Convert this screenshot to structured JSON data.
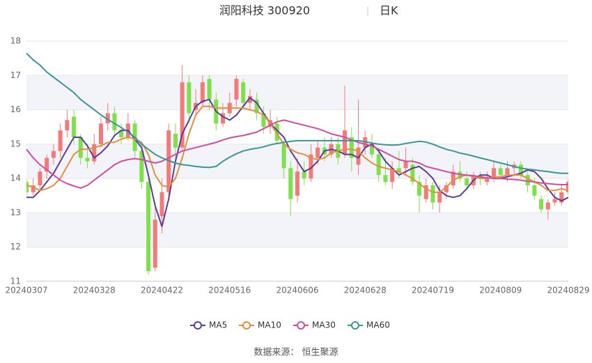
{
  "chart_data": {
    "type": "candlestick",
    "title": "润阳科技 300920",
    "subtitle": "日K",
    "source": "数据来源： 恒生聚源",
    "categories": [
      "20240307",
      null,
      null,
      null,
      null,
      null,
      null,
      null,
      null,
      null,
      "20240328",
      null,
      null,
      null,
      null,
      null,
      null,
      null,
      null,
      null,
      "20240422",
      null,
      null,
      null,
      null,
      null,
      null,
      null,
      null,
      null,
      "20240516",
      null,
      null,
      null,
      null,
      null,
      null,
      null,
      null,
      null,
      "20240606",
      null,
      null,
      null,
      null,
      null,
      null,
      null,
      null,
      null,
      "20240628",
      null,
      null,
      null,
      null,
      null,
      null,
      null,
      null,
      null,
      "20240719",
      null,
      null,
      null,
      null,
      null,
      null,
      null,
      null,
      null,
      "20240809",
      null,
      null,
      null,
      null,
      null,
      null,
      null,
      null,
      null,
      "20240829"
    ],
    "up_color": "#f27a7a",
    "down_color": "#7ee04a",
    "open": [
      13.9,
      13.6,
      13.8,
      14.2,
      14.6,
      14.8,
      15.4,
      15.8,
      15.2,
      14.6,
      14.5,
      15.0,
      15.6,
      15.9,
      15.4,
      15.2,
      15.6,
      14.8,
      13.9,
      11.4,
      12.9,
      13.6,
      15.3,
      14.9,
      16.8,
      16.0,
      16.2,
      16.9,
      16.3,
      15.6,
      15.9,
      16.3,
      16.8,
      16.2,
      16.3,
      15.9,
      15.5,
      15.6,
      15.0,
      14.3,
      13.5,
      14.2,
      14.0,
      14.6,
      14.9,
      14.7,
      15.0,
      14.7,
      15.2,
      14.4,
      14.9,
      15.0,
      14.7,
      14.1,
      13.9,
      14.3,
      14.3,
      14.4,
      13.9,
      13.4,
      13.8,
      13.3,
      13.6,
      13.8,
      14.2,
      14.0,
      13.8,
      14.1,
      13.9,
      14.0,
      14.3,
      14.1,
      14.3,
      14.4,
      14.1,
      13.8,
      13.4,
      13.1,
      13.3,
      13.3,
      13.6
    ],
    "close": [
      13.6,
      13.8,
      14.2,
      14.6,
      14.8,
      15.4,
      15.7,
      15.2,
      14.6,
      14.5,
      15.0,
      15.6,
      15.9,
      15.4,
      15.2,
      15.6,
      14.8,
      13.9,
      11.3,
      12.8,
      13.6,
      15.4,
      14.9,
      16.8,
      15.9,
      16.2,
      16.8,
      16.3,
      15.6,
      15.9,
      16.2,
      16.9,
      16.2,
      16.4,
      15.9,
      15.5,
      15.7,
      15.1,
      14.3,
      13.4,
      14.2,
      14.0,
      14.7,
      14.9,
      14.7,
      15.0,
      14.6,
      15.4,
      14.6,
      14.9,
      15.2,
      14.7,
      14.1,
      13.9,
      14.3,
      14.2,
      14.5,
      13.9,
      13.5,
      13.8,
      13.3,
      13.6,
      13.8,
      14.2,
      14.0,
      13.8,
      14.1,
      14.0,
      14.0,
      14.3,
      14.1,
      14.3,
      14.4,
      14.1,
      13.8,
      13.5,
      13.1,
      13.3,
      13.4,
      13.6,
      13.9
    ],
    "low": [
      13.5,
      13.5,
      13.7,
      14.0,
      14.4,
      14.6,
      15.2,
      15.0,
      14.4,
      14.3,
      14.4,
      14.9,
      15.4,
      15.2,
      15.0,
      15.1,
      14.6,
      13.7,
      11.2,
      11.3,
      12.4,
      13.4,
      14.5,
      14.8,
      15.6,
      15.8,
      16.1,
      16.0,
      15.4,
      15.5,
      15.8,
      16.1,
      16.0,
      16.0,
      15.7,
      15.3,
      15.3,
      15.0,
      14.0,
      12.9,
      13.3,
      13.8,
      13.9,
      14.4,
      14.5,
      14.6,
      14.4,
      14.6,
      14.2,
      14.1,
      14.7,
      14.6,
      13.9,
      13.8,
      13.7,
      14.0,
      14.1,
      13.8,
      13.0,
      13.3,
      13.1,
      13.0,
      13.4,
      13.7,
      13.9,
      13.7,
      13.7,
      13.8,
      13.8,
      13.9,
      14.0,
      13.9,
      14.1,
      14.0,
      13.6,
      13.4,
      13.0,
      12.8,
      13.2,
      13.2,
      13.5
    ],
    "high": [
      14.0,
      14.0,
      14.3,
      14.7,
      15.0,
      15.6,
      16.0,
      16.0,
      15.3,
      15.0,
      15.3,
      15.8,
      16.2,
      16.1,
      15.6,
      15.9,
      15.7,
      15.0,
      14.0,
      13.3,
      14.0,
      15.6,
      15.6,
      17.3,
      17.0,
      16.6,
      17.0,
      17.0,
      16.5,
      16.2,
      16.5,
      17.0,
      16.9,
      16.6,
      16.5,
      16.1,
      16.0,
      15.8,
      15.1,
      14.5,
      14.6,
      14.5,
      15.0,
      15.1,
      15.2,
      15.2,
      15.2,
      16.7,
      15.5,
      16.3,
      15.4,
      15.3,
      14.9,
      14.6,
      14.5,
      14.8,
      14.9,
      14.6,
      14.1,
      14.0,
      13.9,
      13.8,
      13.9,
      14.4,
      14.5,
      14.2,
      14.2,
      14.2,
      14.2,
      14.5,
      14.4,
      14.5,
      14.5,
      14.5,
      14.3,
      14.0,
      13.5,
      13.4,
      13.6,
      13.8,
      14.0
    ],
    "series": [
      {
        "name": "MA5",
        "color": "#5b3c99",
        "values": [
          13.45,
          13.45,
          13.65,
          13.9,
          14.15,
          14.5,
          14.85,
          15.2,
          15.2,
          14.95,
          14.6,
          14.75,
          14.95,
          15.25,
          15.4,
          15.4,
          15.15,
          14.9,
          14.1,
          13.2,
          12.6,
          13.4,
          14.5,
          15.3,
          15.7,
          16.1,
          16.25,
          16.3,
          15.95,
          15.8,
          15.7,
          15.85,
          16.1,
          16.35,
          16.2,
          15.9,
          15.6,
          15.4,
          15.2,
          14.8,
          14.5,
          14.2,
          14.3,
          14.5,
          14.8,
          14.85,
          14.8,
          14.7,
          14.7,
          14.6,
          14.9,
          15.0,
          14.8,
          14.5,
          14.3,
          14.1,
          14.2,
          14.3,
          14.35,
          14.2,
          14.0,
          13.65,
          13.5,
          13.45,
          13.5,
          13.7,
          13.95,
          14.1,
          14.1,
          14.0,
          14.0,
          14.05,
          14.1,
          14.15,
          14.25,
          14.2,
          14.0,
          13.7,
          13.45,
          13.35,
          13.45
        ]
      },
      {
        "name": "MA10",
        "color": "#e38f3e",
        "values": [
          13.8,
          13.75,
          13.65,
          13.7,
          13.8,
          14.0,
          14.35,
          14.7,
          14.85,
          14.85,
          14.9,
          14.95,
          15.05,
          15.05,
          15.15,
          15.2,
          15.15,
          15.05,
          14.7,
          14.1,
          13.8,
          13.75,
          14.0,
          14.6,
          15.3,
          15.85,
          16.1,
          16.1,
          16.05,
          16.05,
          16.05,
          16.05,
          16.05,
          16.0,
          15.95,
          15.85,
          15.6,
          15.3,
          15.0,
          14.85,
          14.75,
          14.7,
          14.6,
          14.55,
          14.6,
          14.75,
          14.8,
          14.85,
          14.85,
          14.8,
          14.6,
          14.45,
          14.35,
          14.3,
          14.25,
          14.2,
          14.1,
          14.0,
          13.85,
          13.7,
          13.6,
          13.6,
          13.75,
          13.95,
          14.05,
          14.1,
          14.05,
          14.0,
          14.0,
          14.05,
          14.05,
          14.1,
          14.1,
          14.1,
          14.0,
          13.9,
          13.8,
          13.65,
          13.65,
          13.7,
          13.65
        ]
      },
      {
        "name": "MA30",
        "color": "#d14ba3",
        "values": [
          14.85,
          14.6,
          14.4,
          14.25,
          14.1,
          13.95,
          13.85,
          13.78,
          13.72,
          13.8,
          13.95,
          14.1,
          14.25,
          14.4,
          14.5,
          14.55,
          14.58,
          14.55,
          14.5,
          14.45,
          14.5,
          14.6,
          14.7,
          14.8,
          14.85,
          14.9,
          14.95,
          15.0,
          15.05,
          15.12,
          15.18,
          15.22,
          15.25,
          15.3,
          15.35,
          15.45,
          15.55,
          15.65,
          15.7,
          15.65,
          15.6,
          15.55,
          15.5,
          15.45,
          15.38,
          15.3,
          15.25,
          15.2,
          15.12,
          15.05,
          15.0,
          14.95,
          14.85,
          14.75,
          14.65,
          14.55,
          14.5,
          14.5,
          14.45,
          14.35,
          14.3,
          14.25,
          14.2,
          14.15,
          14.12,
          14.1,
          14.08,
          14.05,
          14.02,
          14.0,
          14.0,
          13.98,
          13.97,
          13.95,
          13.92,
          13.9,
          13.87,
          13.85,
          13.83,
          13.82,
          13.82
        ]
      },
      {
        "name": "MA60",
        "color": "#3a9596",
        "values": [
          17.65,
          17.45,
          17.3,
          17.1,
          16.95,
          16.8,
          16.65,
          16.5,
          16.3,
          16.15,
          16.0,
          15.85,
          15.72,
          15.6,
          15.48,
          15.35,
          15.2,
          15.0,
          14.85,
          14.7,
          14.6,
          14.52,
          14.45,
          14.4,
          14.38,
          14.35,
          14.33,
          14.32,
          14.35,
          14.5,
          14.62,
          14.72,
          14.8,
          14.85,
          14.88,
          14.92,
          14.98,
          15.02,
          15.05,
          15.08,
          15.1,
          15.1,
          15.1,
          15.1,
          15.1,
          15.1,
          15.1,
          15.1,
          15.1,
          15.1,
          15.07,
          15.03,
          15.0,
          14.98,
          14.97,
          14.98,
          15.02,
          15.05,
          15.08,
          15.06,
          15.0,
          14.92,
          14.85,
          14.8,
          14.74,
          14.7,
          14.65,
          14.6,
          14.55,
          14.5,
          14.45,
          14.4,
          14.35,
          14.3,
          14.27,
          14.25,
          14.22,
          14.2,
          14.17,
          14.15,
          14.15
        ]
      }
    ],
    "ylim": [
      11,
      18
    ],
    "yticks": [
      11,
      12,
      13,
      14,
      15,
      16,
      17,
      18
    ],
    "grid": true,
    "split_area": true,
    "legend": "bottom"
  }
}
